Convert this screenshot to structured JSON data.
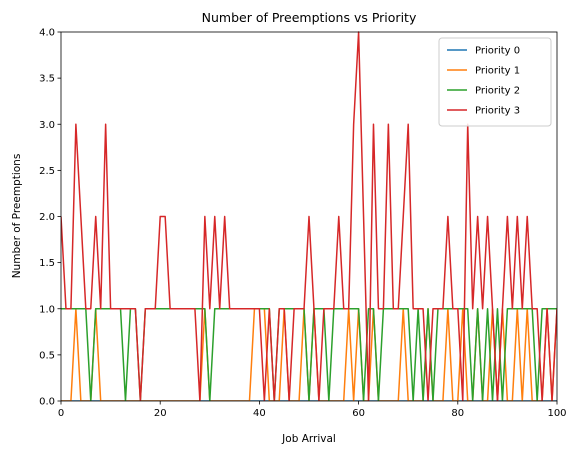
{
  "chart_data": {
    "type": "line",
    "title": "Number of Preemptions vs Priority",
    "xlabel": "Job Arrival",
    "ylabel": "Number of Preemptions",
    "xlim": [
      0,
      100
    ],
    "ylim": [
      0,
      4
    ],
    "xticks": [
      0,
      20,
      40,
      60,
      80,
      100
    ],
    "yticks": [
      "0.0",
      "0.5",
      "1.0",
      "1.5",
      "2.0",
      "2.5",
      "3.0",
      "3.5",
      "4.0"
    ],
    "grid": false,
    "legend_position": "top-right",
    "series": [
      {
        "name": "Priority 0",
        "color": "#1f77b4",
        "x": [
          0,
          100
        ],
        "y": [
          0,
          0
        ]
      },
      {
        "name": "Priority 1",
        "color": "#ff7f0e",
        "x": [
          0,
          1,
          2,
          3,
          4,
          5,
          6,
          7,
          8,
          9,
          10,
          11,
          12,
          13,
          14,
          15,
          16,
          17,
          18,
          19,
          20,
          21,
          22,
          23,
          24,
          25,
          26,
          27,
          28,
          29,
          30,
          31,
          32,
          33,
          34,
          35,
          36,
          37,
          38,
          39,
          40,
          41,
          42,
          43,
          44,
          45,
          46,
          47,
          48,
          49,
          50,
          51,
          52,
          53,
          54,
          55,
          56,
          57,
          58,
          59,
          60,
          61,
          62,
          63,
          64,
          65,
          66,
          67,
          68,
          69,
          70,
          71,
          72,
          73,
          74,
          75,
          76,
          77,
          78,
          79,
          80,
          81,
          82,
          83,
          84,
          85,
          86,
          87,
          88,
          89,
          90,
          91,
          92,
          93,
          94,
          95,
          96,
          97,
          98,
          99,
          100
        ],
        "y": [
          0,
          0,
          0,
          1,
          0,
          0,
          0,
          1,
          0,
          0,
          0,
          0,
          0,
          0,
          0,
          0,
          0,
          0,
          0,
          0,
          0,
          0,
          0,
          0,
          0,
          0,
          0,
          0,
          0,
          1,
          0,
          0,
          0,
          0,
          0,
          0,
          0,
          0,
          0,
          1,
          1,
          1,
          0,
          0,
          0,
          1,
          0,
          0,
          0,
          1,
          0,
          1,
          0,
          0,
          0,
          0,
          0,
          0,
          1,
          0,
          1,
          0,
          0,
          1,
          0,
          0,
          0,
          0,
          0,
          1,
          0,
          0,
          0,
          0,
          1,
          0,
          0,
          0,
          1,
          0,
          0,
          1,
          0,
          0,
          1,
          0,
          0,
          1,
          0,
          1,
          0,
          0,
          1,
          0,
          1,
          0,
          0,
          0,
          1,
          0,
          1
        ]
      },
      {
        "name": "Priority 2",
        "color": "#2ca02c",
        "x": [
          0,
          1,
          2,
          3,
          4,
          5,
          6,
          7,
          8,
          9,
          10,
          11,
          12,
          13,
          14,
          15,
          16,
          17,
          18,
          19,
          20,
          21,
          22,
          23,
          24,
          25,
          26,
          27,
          28,
          29,
          30,
          31,
          32,
          33,
          34,
          35,
          36,
          37,
          38,
          39,
          40,
          41,
          42,
          43,
          44,
          45,
          46,
          47,
          48,
          49,
          50,
          51,
          52,
          53,
          54,
          55,
          56,
          57,
          58,
          59,
          60,
          61,
          62,
          63,
          64,
          65,
          66,
          67,
          68,
          69,
          70,
          71,
          72,
          73,
          74,
          75,
          76,
          77,
          78,
          79,
          80,
          81,
          82,
          83,
          84,
          85,
          86,
          87,
          88,
          89,
          90,
          91,
          92,
          93,
          94,
          95,
          96,
          97,
          98,
          99,
          100
        ],
        "y": [
          1,
          1,
          1,
          1,
          1,
          1,
          0,
          1,
          1,
          1,
          1,
          1,
          1,
          0,
          1,
          1,
          0,
          1,
          1,
          1,
          1,
          1,
          1,
          1,
          1,
          1,
          1,
          1,
          1,
          1,
          0,
          1,
          1,
          1,
          1,
          1,
          1,
          1,
          1,
          1,
          1,
          1,
          1,
          0,
          1,
          1,
          1,
          1,
          1,
          1,
          0,
          1,
          1,
          1,
          0,
          1,
          1,
          1,
          1,
          1,
          1,
          0,
          1,
          1,
          0,
          1,
          1,
          1,
          1,
          1,
          1,
          0,
          1,
          0,
          1,
          0,
          1,
          1,
          1,
          1,
          1,
          1,
          1,
          0,
          1,
          0,
          1,
          0,
          1,
          0,
          1,
          1,
          1,
          1,
          1,
          1,
          0,
          1,
          1,
          1,
          1
        ]
      },
      {
        "name": "Priority 3",
        "color": "#d62728",
        "x": [
          0,
          1,
          2,
          3,
          4,
          5,
          6,
          7,
          8,
          9,
          10,
          11,
          12,
          13,
          14,
          15,
          16,
          17,
          18,
          19,
          20,
          21,
          22,
          23,
          24,
          25,
          26,
          27,
          28,
          29,
          30,
          31,
          32,
          33,
          34,
          35,
          36,
          37,
          38,
          39,
          40,
          41,
          42,
          43,
          44,
          45,
          46,
          47,
          48,
          49,
          50,
          51,
          52,
          53,
          54,
          55,
          56,
          57,
          58,
          59,
          60,
          61,
          62,
          63,
          64,
          65,
          66,
          67,
          68,
          69,
          70,
          71,
          72,
          73,
          74,
          75,
          76,
          77,
          78,
          79,
          80,
          81,
          82,
          83,
          84,
          85,
          86,
          87,
          88,
          89,
          90,
          91,
          92,
          93,
          94,
          95,
          96,
          97,
          98,
          99,
          100
        ],
        "y": [
          2,
          1,
          1,
          3,
          2,
          1,
          1,
          2,
          1,
          3,
          1,
          1,
          1,
          1,
          1,
          1,
          0,
          1,
          1,
          1,
          2,
          2,
          1,
          1,
          1,
          1,
          1,
          1,
          0,
          2,
          1,
          2,
          1,
          2,
          1,
          1,
          1,
          1,
          1,
          1,
          1,
          0,
          1,
          0,
          1,
          1,
          0,
          1,
          1,
          1,
          2,
          1,
          0,
          1,
          1,
          1,
          2,
          1,
          1,
          3,
          4,
          2,
          0,
          3,
          1,
          1,
          3,
          1,
          1,
          2,
          3,
          1,
          1,
          1,
          0,
          1,
          1,
          1,
          2,
          1,
          1,
          0,
          3,
          1,
          2,
          1,
          2,
          1,
          0,
          1,
          2,
          1,
          2,
          1,
          2,
          1,
          1,
          0,
          1,
          0,
          1
        ]
      }
    ]
  }
}
